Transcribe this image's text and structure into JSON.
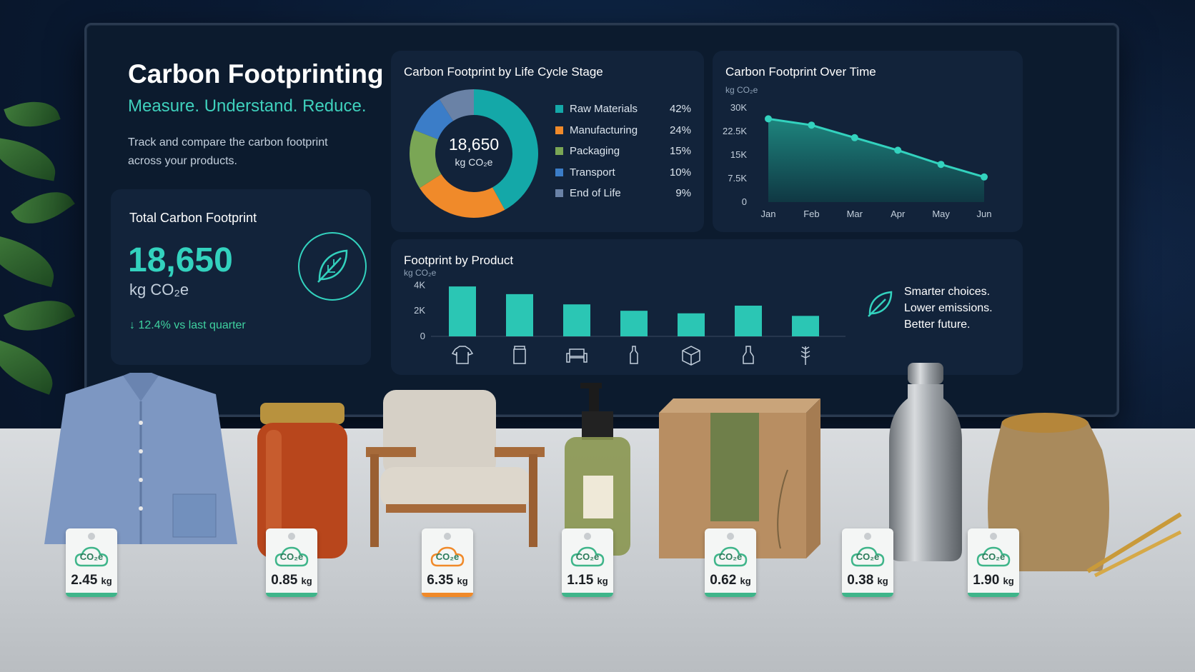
{
  "header": {
    "title": "Carbon Footprinting",
    "tagline": "Measure. Understand. Reduce.",
    "description": "Track and compare the carbon footprint across your products."
  },
  "total": {
    "title": "Total Carbon Footprint",
    "value": "18,650",
    "unit": "kg CO₂e",
    "change": "↓ 12.4% vs last quarter"
  },
  "donut": {
    "title": "Carbon Footprint by Life Cycle Stage",
    "center_value": "18,650",
    "center_unit": "kg CO₂e",
    "segments": [
      {
        "name": "Raw Materials",
        "percent": 42,
        "label": "42%",
        "color": "#14a8a8"
      },
      {
        "name": "Manufacturing",
        "percent": 24,
        "label": "24%",
        "color": "#f08a2a"
      },
      {
        "name": "Packaging",
        "percent": 15,
        "label": "15%",
        "color": "#7aa655"
      },
      {
        "name": "Transport",
        "percent": 10,
        "label": "10%",
        "color": "#3b7dc8"
      },
      {
        "name": "End of Life",
        "percent": 9,
        "label": "9%",
        "color": "#6a82a6"
      }
    ]
  },
  "time_chart": {
    "title": "Carbon Footprint Over Time",
    "unit": "kg CO₂e",
    "yticks": [
      "0",
      "7.5K",
      "15K",
      "22.5K",
      "30K"
    ],
    "ytick_values": [
      0,
      7500,
      15000,
      22500,
      30000
    ]
  },
  "product_chart": {
    "title": "Footprint by Product",
    "unit": "kg CO₂e",
    "yticks": [
      "0",
      "2K",
      "4K"
    ],
    "ytick_values": [
      0,
      2000,
      4000
    ]
  },
  "slogan": {
    "line1": "Smarter choices.",
    "line2": "Lower emissions.",
    "line3": "Better future."
  },
  "tags": [
    {
      "value": "2.45",
      "unit": "kg",
      "color": "#3fb58a"
    },
    {
      "value": "0.85",
      "unit": "kg",
      "color": "#3fb58a"
    },
    {
      "value": "6.35",
      "unit": "kg",
      "color": "#f08a2a"
    },
    {
      "value": "1.15",
      "unit": "kg",
      "color": "#3fb58a"
    },
    {
      "value": "0.62",
      "unit": "kg",
      "color": "#3fb58a"
    },
    {
      "value": "0.38",
      "unit": "kg",
      "color": "#3fb58a"
    },
    {
      "value": "1.90",
      "unit": "kg",
      "color": "#3fb58a"
    }
  ],
  "tag_badge_text": "CO₂e",
  "icons": [
    "leaf-icon",
    "shirt-icon",
    "jar-icon",
    "armchair-icon",
    "bottle-icon",
    "box-icon",
    "flask-icon",
    "wheat-icon"
  ],
  "chart_data": [
    {
      "type": "pie",
      "title": "Carbon Footprint by Life Cycle Stage",
      "categories": [
        "Raw Materials",
        "Manufacturing",
        "Packaging",
        "Transport",
        "End of Life"
      ],
      "values": [
        42,
        24,
        15,
        10,
        9
      ]
    },
    {
      "type": "area",
      "title": "Carbon Footprint Over Time",
      "ylabel": "kg CO₂e",
      "categories": [
        "Jan",
        "Feb",
        "Mar",
        "Apr",
        "May",
        "Jun"
      ],
      "values": [
        26500,
        24500,
        20500,
        16500,
        12000,
        8000
      ],
      "ylim": [
        0,
        30000
      ],
      "grid": false
    },
    {
      "type": "bar",
      "title": "Footprint by Product",
      "ylabel": "kg CO₂e",
      "categories": [
        "shirt-icon",
        "jar-icon",
        "armchair-icon",
        "bottle-icon",
        "box-icon",
        "flask-icon",
        "wheat-icon"
      ],
      "values": [
        3900,
        3300,
        2500,
        2000,
        1800,
        2400,
        1600
      ],
      "ylim": [
        0,
        4800
      ]
    }
  ]
}
